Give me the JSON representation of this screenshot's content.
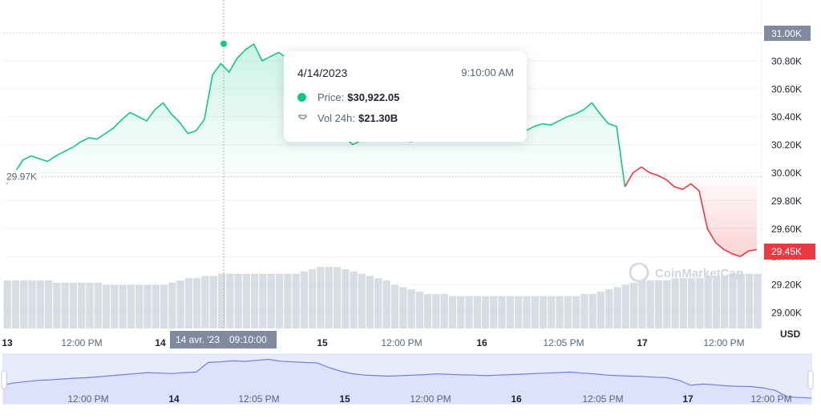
{
  "chart_data": {
    "type": "line",
    "title": "",
    "currency": "USD",
    "y_ticks": [
      "31.00K",
      "30.80K",
      "30.60K",
      "30.40K",
      "30.20K",
      "30.00K",
      "29.80K",
      "29.60K",
      "29.40K",
      "29.20K",
      "29.00K"
    ],
    "ylim": [
      28900,
      31100
    ],
    "x_ticks": [
      "13",
      "12:00 PM",
      "14",
      "12:00 PM",
      "15",
      "12:00 PM",
      "16",
      "12:05 PM",
      "17",
      "12:00 PM"
    ],
    "start_price_label": "29.97K",
    "current_price_label": "29.45K",
    "crosshair_x_label": "14 avr. '23",
    "crosshair_time_label": "09:10:00",
    "watermark": "CoinMarketCap",
    "grid": true,
    "price_series": {
      "name": "Price",
      "values": [
        29.92,
        30.0,
        30.09,
        30.12,
        30.1,
        30.08,
        30.12,
        30.15,
        30.18,
        30.22,
        30.25,
        30.24,
        30.28,
        30.32,
        30.38,
        30.43,
        30.4,
        30.37,
        30.45,
        30.5,
        30.42,
        30.36,
        30.28,
        30.3,
        30.38,
        30.7,
        30.78,
        30.72,
        30.82,
        30.88,
        30.92,
        30.8,
        30.83,
        30.86,
        30.82,
        30.75,
        30.6,
        30.5,
        30.45,
        30.4,
        30.3,
        30.25,
        30.2,
        30.23,
        30.26,
        30.3,
        30.28,
        30.25,
        30.26,
        30.22,
        30.25,
        30.27,
        30.29,
        30.32,
        30.38,
        30.37,
        30.35,
        30.33,
        30.32,
        30.31,
        30.3,
        30.28,
        30.27,
        30.3,
        30.33,
        30.35,
        30.34,
        30.37,
        30.4,
        30.42,
        30.45,
        30.5,
        30.42,
        30.35,
        30.33,
        29.9,
        30.0,
        30.04,
        30.0,
        29.98,
        29.95,
        29.9,
        29.88,
        29.92,
        29.87,
        29.6,
        29.5,
        29.45,
        29.42,
        29.4,
        29.44,
        29.45
      ]
    },
    "volume_series": {
      "name": "Vol 24h",
      "values": [
        21.0,
        21.0,
        21.0,
        21.0,
        21.0,
        21.0,
        20.9,
        20.9,
        20.9,
        20.9,
        20.9,
        20.9,
        20.8,
        20.8,
        20.8,
        20.8,
        20.8,
        20.8,
        20.8,
        20.8,
        20.9,
        21.0,
        21.1,
        21.1,
        21.2,
        21.2,
        21.3,
        21.3,
        21.3,
        21.3,
        21.3,
        21.3,
        21.3,
        21.3,
        21.3,
        21.3,
        21.4,
        21.5,
        21.6,
        21.6,
        21.6,
        21.5,
        21.4,
        21.3,
        21.2,
        21.1,
        21.0,
        20.8,
        20.7,
        20.6,
        20.5,
        20.4,
        20.4,
        20.4,
        20.3,
        20.3,
        20.3,
        20.3,
        20.3,
        20.3,
        20.3,
        20.3,
        20.3,
        20.3,
        20.3,
        20.3,
        20.3,
        20.3,
        20.3,
        20.3,
        20.4,
        20.4,
        20.5,
        20.6,
        20.7,
        20.8,
        20.9,
        21.0,
        21.0,
        21.0,
        21.0,
        21.1,
        21.1,
        21.1,
        21.1,
        21.2,
        21.2,
        21.2,
        21.3,
        21.3,
        21.3,
        21.3
      ],
      "unit": "B"
    },
    "tooltip": {
      "date": "4/14/2023",
      "time": "9:10:00 AM",
      "price_label": "Price:",
      "price_value": "$30,922.05",
      "vol_label": "Vol 24h:",
      "vol_value": "$21.30B"
    },
    "navigator": {
      "x_ticks": [
        "12:00 PM",
        "14",
        "12:05 PM",
        "15",
        "12:00 PM",
        "16",
        "12:05 PM",
        "17",
        "12:00 PM"
      ],
      "values": [
        29.92,
        30.0,
        30.05,
        30.1,
        30.12,
        30.15,
        30.18,
        30.2,
        30.24,
        30.28,
        30.32,
        30.36,
        30.4,
        30.38,
        30.36,
        30.4,
        30.42,
        30.8,
        30.82,
        30.86,
        30.84,
        30.88,
        30.92,
        30.85,
        30.82,
        30.8,
        30.78,
        30.6,
        30.45,
        30.35,
        30.3,
        30.28,
        30.26,
        30.28,
        30.3,
        30.32,
        30.35,
        30.33,
        30.31,
        30.3,
        30.28,
        30.3,
        30.32,
        30.34,
        30.36,
        30.38,
        30.4,
        30.42,
        30.38,
        30.35,
        30.3,
        30.28,
        30.26,
        30.25,
        30.22,
        30.2,
        30.1,
        29.9,
        29.95,
        29.92,
        29.88,
        29.86,
        29.85,
        29.8,
        29.7,
        29.45,
        29.42,
        29.4
      ]
    },
    "colors": {
      "up": "#16c784",
      "down": "#ea3943",
      "volume": "#d8dce3",
      "navigator_fill": "#e8ebfb",
      "navigator_line": "#6f7fe0"
    }
  }
}
